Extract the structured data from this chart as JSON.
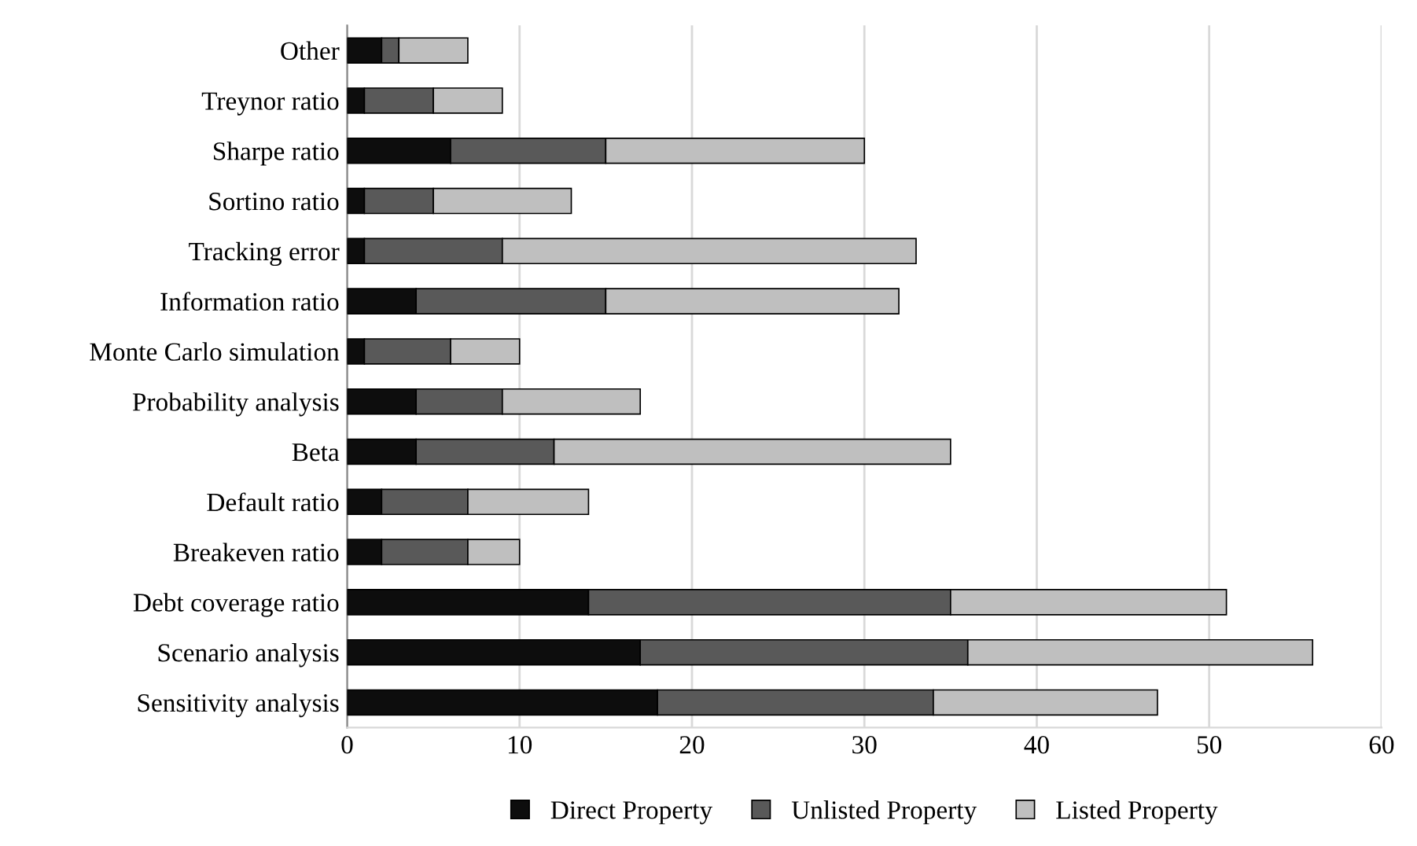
{
  "chart_data": {
    "type": "bar",
    "orientation": "horizontal",
    "stacked": true,
    "categories": [
      "Other",
      "Treynor ratio",
      "Sharpe ratio",
      "Sortino ratio",
      "Tracking error",
      "Information ratio",
      "Monte Carlo simulation",
      "Probability analysis",
      "Beta",
      "Default ratio",
      "Breakeven ratio",
      "Debt coverage ratio",
      "Scenario analysis",
      "Sensitivity analysis"
    ],
    "series": [
      {
        "name": "Direct Property",
        "color": "#0d0d0d",
        "values": [
          2,
          1,
          6,
          1,
          1,
          4,
          1,
          4,
          4,
          2,
          2,
          14,
          17,
          18
        ]
      },
      {
        "name": "Unlisted Property",
        "color": "#595959",
        "values": [
          1,
          4,
          9,
          4,
          8,
          11,
          5,
          5,
          8,
          5,
          5,
          21,
          19,
          16
        ]
      },
      {
        "name": "Listed Property",
        "color": "#bfbfbf",
        "values": [
          4,
          4,
          15,
          8,
          24,
          17,
          4,
          8,
          23,
          7,
          3,
          16,
          20,
          13
        ]
      }
    ],
    "xlim": [
      0,
      60
    ],
    "xticks": [
      0,
      10,
      20,
      30,
      40,
      50,
      60
    ],
    "grid": "x",
    "legend": "bottom"
  }
}
